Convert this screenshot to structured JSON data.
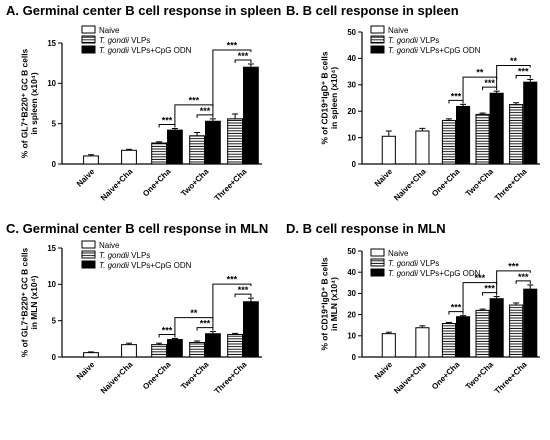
{
  "chart_data": [
    {
      "type": "bar",
      "title": "A. Germinal center B cell response in spleen",
      "ylabel_lines": [
        "% of GL7⁺B220⁺ GC B cells",
        "in spleen (x10⁴)"
      ],
      "ylim": [
        0,
        15
      ],
      "yticks": [
        "0",
        "5",
        "10",
        "15"
      ],
      "legend": [
        "Naive",
        "T. gondii VLPs",
        "T. gondii VLPs+CpG ODN"
      ],
      "categories": [
        "Naive",
        "Naive+Cha",
        "One+Cha",
        "Two+Cha",
        "Three+Cha"
      ],
      "series": [
        {
          "name": "Naive",
          "values": [
            1.0,
            1.7,
            null,
            null,
            null
          ],
          "errors": [
            0.15,
            0.12,
            null,
            null,
            null
          ]
        },
        {
          "name": "T. gondii VLPs",
          "values": [
            null,
            null,
            2.6,
            3.5,
            5.6
          ],
          "errors": [
            null,
            null,
            0.15,
            0.4,
            0.6
          ]
        },
        {
          "name": "T. gondii VLPs+CpG ODN",
          "values": [
            null,
            null,
            4.2,
            5.3,
            12.0
          ],
          "errors": [
            null,
            null,
            0.2,
            0.3,
            0.4
          ]
        }
      ],
      "significance": [
        {
          "label": "***",
          "from": 2,
          "to": 2,
          "level": 0
        },
        {
          "label": "***",
          "from": 3,
          "to": 3,
          "level": 0
        },
        {
          "label": "***",
          "from": 2,
          "to": 3,
          "level": 1
        },
        {
          "label": "***",
          "from": 4,
          "to": 4,
          "level": 0
        },
        {
          "label": "***",
          "from": 3,
          "to": 4,
          "level": 1
        }
      ]
    },
    {
      "type": "bar",
      "title": "B. B cell response in spleen",
      "ylabel_lines": [
        "% of CD19⁺IgD⁺ B cells",
        "in spleen (x10⁴)"
      ],
      "ylim": [
        0,
        50
      ],
      "yticks": [
        "0",
        "10",
        "20",
        "30",
        "40",
        "50"
      ],
      "legend": [
        "Naive",
        "T. gondii VLPs",
        "T. gondii VLPs+CpG ODN"
      ],
      "categories": [
        "Naive",
        "Naive+Cha",
        "One+Cha",
        "Two+Cha",
        "Three+Cha"
      ],
      "series": [
        {
          "name": "Naive",
          "values": [
            10.5,
            12.5,
            null,
            null,
            null
          ],
          "errors": [
            2.0,
            1.0,
            null,
            null,
            null
          ]
        },
        {
          "name": "T. gondii VLPs",
          "values": [
            null,
            null,
            16.5,
            18.8,
            22.5
          ],
          "errors": [
            null,
            null,
            0.6,
            0.5,
            0.7
          ]
        },
        {
          "name": "T. gondii VLPs+CpG ODN",
          "values": [
            null,
            null,
            21.8,
            26.8,
            31.0
          ],
          "errors": [
            null,
            null,
            0.8,
            0.8,
            1.0
          ]
        }
      ],
      "significance": [
        {
          "label": "***",
          "from": 2,
          "to": 2,
          "level": 0
        },
        {
          "label": "***",
          "from": 3,
          "to": 3,
          "level": 0
        },
        {
          "label": "**",
          "from": 2,
          "to": 3,
          "level": 1
        },
        {
          "label": "***",
          "from": 4,
          "to": 4,
          "level": 0
        },
        {
          "label": "**",
          "from": 3,
          "to": 4,
          "level": 1
        }
      ]
    },
    {
      "type": "bar",
      "title": "C. Germinal center B cell response in MLN",
      "ylabel_lines": [
        "% of GL7⁺B220⁺ GC B cells",
        "in MLN (x10⁴)"
      ],
      "ylim": [
        0,
        15
      ],
      "yticks": [
        "0",
        "5",
        "10",
        "15"
      ],
      "legend": [
        "Naive",
        "T. gondii VLPs",
        "T. gondii VLPs+CpG ODN"
      ],
      "categories": [
        "Naive",
        "Naive+Cha",
        "One+Cha",
        "Two+Cha",
        "Three+Cha"
      ],
      "series": [
        {
          "name": "Naive",
          "values": [
            0.6,
            1.7,
            null,
            null,
            null
          ],
          "errors": [
            0.1,
            0.2,
            null,
            null,
            null
          ]
        },
        {
          "name": "T. gondii VLPs",
          "values": [
            null,
            null,
            1.7,
            2.0,
            3.1
          ],
          "errors": [
            null,
            null,
            0.2,
            0.2,
            0.15
          ]
        },
        {
          "name": "T. gondii VLPs+CpG ODN",
          "values": [
            null,
            null,
            2.4,
            3.2,
            7.6
          ],
          "errors": [
            null,
            null,
            0.15,
            0.3,
            0.5
          ]
        }
      ],
      "significance": [
        {
          "label": "***",
          "from": 2,
          "to": 2,
          "level": 0
        },
        {
          "label": "***",
          "from": 3,
          "to": 3,
          "level": 0
        },
        {
          "label": "**",
          "from": 2,
          "to": 3,
          "level": 1
        },
        {
          "label": "***",
          "from": 4,
          "to": 4,
          "level": 0
        },
        {
          "label": "***",
          "from": 3,
          "to": 4,
          "level": 1
        }
      ]
    },
    {
      "type": "bar",
      "title": "D. B cell response in MLN",
      "ylabel_lines": [
        "% of CD19⁺IgD⁺ B cells",
        "in MLN (x10⁴)"
      ],
      "ylim": [
        0,
        50
      ],
      "yticks": [
        "0",
        "10",
        "20",
        "30",
        "40",
        "50"
      ],
      "legend": [
        "Naive",
        "T. gondii VLPs",
        "T. gondii VLPs+CpG ODN"
      ],
      "categories": [
        "Naive",
        "Naive+Cha",
        "One+Cha",
        "Two+Cha",
        "Three+Cha"
      ],
      "series": [
        {
          "name": "Naive",
          "values": [
            11.0,
            13.8,
            null,
            null,
            null
          ],
          "errors": [
            0.7,
            0.9,
            null,
            null,
            null
          ]
        },
        {
          "name": "T. gondii VLPs",
          "values": [
            null,
            null,
            15.8,
            22.0,
            24.5
          ],
          "errors": [
            null,
            null,
            0.5,
            0.6,
            1.0
          ]
        },
        {
          "name": "T. gondii VLPs+CpG ODN",
          "values": [
            null,
            null,
            19.0,
            27.5,
            32.0
          ],
          "errors": [
            null,
            null,
            0.5,
            1.0,
            2.0
          ]
        }
      ],
      "significance": [
        {
          "label": "***",
          "from": 2,
          "to": 2,
          "level": 0
        },
        {
          "label": "***",
          "from": 3,
          "to": 3,
          "level": 0
        },
        {
          "label": "***",
          "from": 2,
          "to": 3,
          "level": 1
        },
        {
          "label": "***",
          "from": 4,
          "to": 4,
          "level": 0
        },
        {
          "label": "***",
          "from": 3,
          "to": 4,
          "level": 1
        }
      ]
    }
  ]
}
